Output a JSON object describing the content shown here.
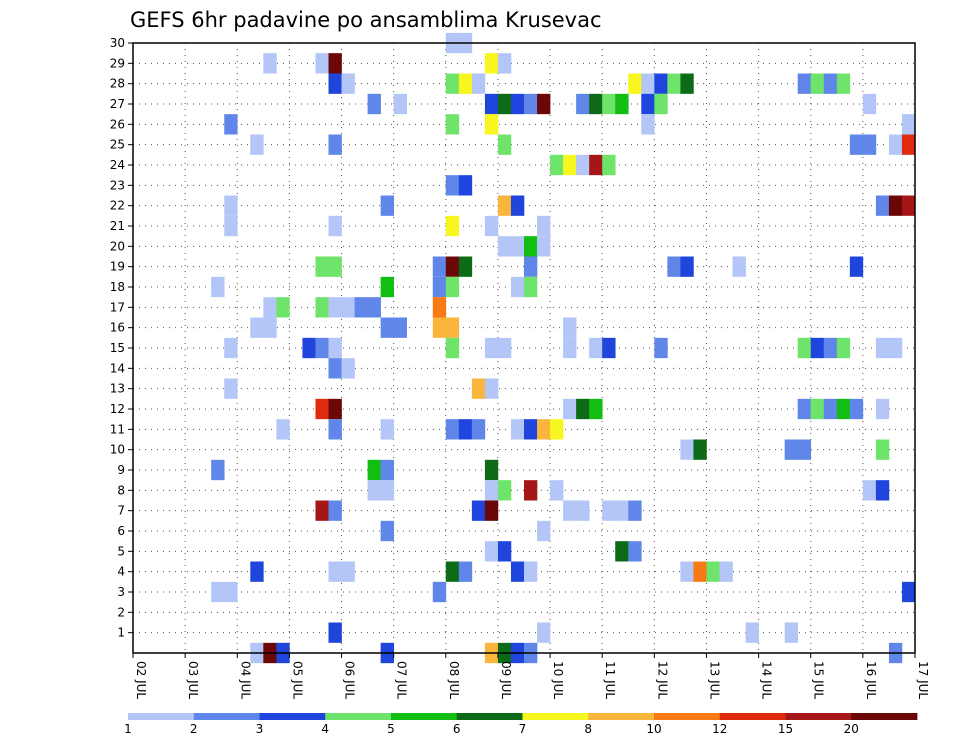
{
  "chart_data": {
    "type": "heatmap",
    "title": "GEFS 6hr padavine po ansamblima Krusevac",
    "y_ticks": [
      "1",
      "2",
      "3",
      "4",
      "5",
      "6",
      "7",
      "8",
      "9",
      "10",
      "11",
      "12",
      "13",
      "14",
      "15",
      "16",
      "17",
      "18",
      "19",
      "20",
      "21",
      "22",
      "23",
      "24",
      "25",
      "26",
      "27",
      "28",
      "29",
      "30"
    ],
    "x_ticks": [
      "02 JUL",
      "03 JUL",
      "04 JUL",
      "05 JUL",
      "06 JUL",
      "07 JUL",
      "08 JUL",
      "09 JUL",
      "10 JUL",
      "11 JUL",
      "12 JUL",
      "13 JUL",
      "14 JUL",
      "15 JUL",
      "16 JUL",
      "17 JUL"
    ],
    "x_range_days": [
      0,
      15
    ],
    "y_range": [
      0,
      30
    ],
    "time_step_hours": 6,
    "grid": "dotted",
    "colorbar": {
      "position": "bottom",
      "labels": [
        "1",
        "2",
        "3",
        "4",
        "5",
        "6",
        "7",
        "8",
        "10",
        "12",
        "15",
        "20"
      ],
      "colors": [
        "#b3c6f7",
        "#5f86e8",
        "#1f45dc",
        "#6fe46a",
        "#12be12",
        "#0d6b18",
        "#f7f71f",
        "#fab63c",
        "#f77a14",
        "#e02a0e",
        "#a51717",
        "#6b0707"
      ]
    },
    "cells": [
      [
        6.0,
        30,
        0
      ],
      [
        6.25,
        30,
        0
      ],
      [
        2.5,
        29,
        0
      ],
      [
        3.5,
        29,
        0
      ],
      [
        3.75,
        29,
        11
      ],
      [
        6.75,
        29,
        6
      ],
      [
        7.0,
        29,
        0
      ],
      [
        3.75,
        28,
        2
      ],
      [
        4.0,
        28,
        0
      ],
      [
        6.0,
        28,
        3
      ],
      [
        6.25,
        28,
        6
      ],
      [
        6.5,
        28,
        0
      ],
      [
        9.5,
        28,
        6
      ],
      [
        9.75,
        28,
        0
      ],
      [
        10.0,
        28,
        2
      ],
      [
        10.25,
        28,
        3
      ],
      [
        10.5,
        28,
        5
      ],
      [
        12.75,
        28,
        1
      ],
      [
        13.0,
        28,
        3
      ],
      [
        13.25,
        28,
        1
      ],
      [
        13.5,
        28,
        3
      ],
      [
        4.5,
        27,
        1
      ],
      [
        5.0,
        27,
        0
      ],
      [
        6.75,
        27,
        2
      ],
      [
        7.0,
        27,
        5
      ],
      [
        7.25,
        27,
        2
      ],
      [
        7.5,
        27,
        1
      ],
      [
        7.75,
        27,
        11
      ],
      [
        8.5,
        27,
        1
      ],
      [
        8.75,
        27,
        5
      ],
      [
        9.0,
        27,
        3
      ],
      [
        9.25,
        27,
        4
      ],
      [
        9.75,
        27,
        2
      ],
      [
        10.0,
        27,
        3
      ],
      [
        14.0,
        27,
        0
      ],
      [
        1.75,
        26,
        1
      ],
      [
        6.0,
        26,
        3
      ],
      [
        6.75,
        26,
        6
      ],
      [
        9.75,
        26,
        0
      ],
      [
        14.75,
        26,
        0
      ],
      [
        2.25,
        25,
        0
      ],
      [
        3.75,
        25,
        1
      ],
      [
        7.0,
        25,
        3
      ],
      [
        13.75,
        25,
        1
      ],
      [
        14.0,
        25,
        1
      ],
      [
        14.5,
        25,
        0
      ],
      [
        14.75,
        25,
        9
      ],
      [
        6.0,
        23,
        1
      ],
      [
        6.25,
        23,
        2
      ],
      [
        8.0,
        24,
        3
      ],
      [
        8.25,
        24,
        6
      ],
      [
        8.5,
        24,
        0
      ],
      [
        8.75,
        24,
        10
      ],
      [
        9.0,
        24,
        3
      ],
      [
        1.75,
        22,
        0
      ],
      [
        4.75,
        22,
        1
      ],
      [
        7.0,
        22,
        7
      ],
      [
        7.25,
        22,
        2
      ],
      [
        14.25,
        22,
        1
      ],
      [
        14.5,
        22,
        11
      ],
      [
        14.75,
        22,
        10
      ],
      [
        1.75,
        21,
        0
      ],
      [
        3.75,
        21,
        0
      ],
      [
        6.0,
        21,
        6
      ],
      [
        6.75,
        21,
        0
      ],
      [
        7.75,
        21,
        0
      ],
      [
        7.0,
        20,
        0
      ],
      [
        7.25,
        20,
        0
      ],
      [
        7.5,
        20,
        4
      ],
      [
        7.75,
        20,
        0
      ],
      [
        3.5,
        19,
        3
      ],
      [
        3.75,
        19,
        3
      ],
      [
        5.75,
        19,
        1
      ],
      [
        6.0,
        19,
        11
      ],
      [
        6.25,
        19,
        5
      ],
      [
        7.5,
        19,
        1
      ],
      [
        10.25,
        19,
        1
      ],
      [
        10.5,
        19,
        2
      ],
      [
        11.5,
        19,
        0
      ],
      [
        13.75,
        19,
        2
      ],
      [
        1.5,
        18,
        0
      ],
      [
        4.75,
        18,
        4
      ],
      [
        5.75,
        18,
        1
      ],
      [
        6.0,
        18,
        3
      ],
      [
        7.25,
        18,
        0
      ],
      [
        7.5,
        18,
        3
      ],
      [
        2.5,
        17,
        0
      ],
      [
        2.75,
        17,
        3
      ],
      [
        3.5,
        17,
        3
      ],
      [
        3.75,
        17,
        0
      ],
      [
        4.0,
        17,
        0
      ],
      [
        4.25,
        17,
        1
      ],
      [
        4.5,
        17,
        1
      ],
      [
        5.75,
        17,
        8
      ],
      [
        2.25,
        16,
        0
      ],
      [
        2.5,
        16,
        0
      ],
      [
        4.75,
        16,
        1
      ],
      [
        5.0,
        16,
        1
      ],
      [
        5.75,
        16,
        7
      ],
      [
        6.0,
        16,
        7
      ],
      [
        8.25,
        16,
        0
      ],
      [
        1.75,
        15,
        0
      ],
      [
        3.25,
        15,
        2
      ],
      [
        3.5,
        15,
        1
      ],
      [
        3.75,
        15,
        0
      ],
      [
        6.0,
        15,
        3
      ],
      [
        6.75,
        15,
        0
      ],
      [
        7.0,
        15,
        0
      ],
      [
        8.25,
        15,
        0
      ],
      [
        8.75,
        15,
        0
      ],
      [
        9.0,
        15,
        2
      ],
      [
        10.0,
        15,
        1
      ],
      [
        12.75,
        15,
        3
      ],
      [
        13.0,
        15,
        2
      ],
      [
        13.25,
        15,
        1
      ],
      [
        13.5,
        15,
        3
      ],
      [
        14.25,
        15,
        0
      ],
      [
        14.5,
        15,
        0
      ],
      [
        3.75,
        14,
        1
      ],
      [
        4.0,
        14,
        0
      ],
      [
        1.75,
        13,
        0
      ],
      [
        6.5,
        13,
        7
      ],
      [
        6.75,
        13,
        0
      ],
      [
        3.5,
        12,
        9
      ],
      [
        3.75,
        12,
        11
      ],
      [
        8.25,
        12,
        0
      ],
      [
        8.5,
        12,
        5
      ],
      [
        8.75,
        12,
        4
      ],
      [
        12.75,
        12,
        1
      ],
      [
        13.0,
        12,
        3
      ],
      [
        13.25,
        12,
        1
      ],
      [
        13.5,
        12,
        4
      ],
      [
        13.75,
        12,
        1
      ],
      [
        14.25,
        12,
        0
      ],
      [
        2.75,
        11,
        0
      ],
      [
        3.75,
        11,
        1
      ],
      [
        4.75,
        11,
        0
      ],
      [
        6.0,
        11,
        1
      ],
      [
        6.25,
        11,
        2
      ],
      [
        6.5,
        11,
        1
      ],
      [
        7.25,
        11,
        0
      ],
      [
        7.5,
        11,
        2
      ],
      [
        7.75,
        11,
        7
      ],
      [
        8.0,
        11,
        6
      ],
      [
        10.5,
        10,
        0
      ],
      [
        10.75,
        10,
        5
      ],
      [
        12.5,
        10,
        1
      ],
      [
        12.75,
        10,
        1
      ],
      [
        14.25,
        10,
        3
      ],
      [
        1.5,
        9,
        1
      ],
      [
        4.5,
        9,
        4
      ],
      [
        4.75,
        9,
        1
      ],
      [
        6.75,
        9,
        5
      ],
      [
        4.5,
        8,
        0
      ],
      [
        4.75,
        8,
        0
      ],
      [
        6.75,
        8,
        0
      ],
      [
        7.0,
        8,
        3
      ],
      [
        7.5,
        8,
        10
      ],
      [
        8.0,
        8,
        0
      ],
      [
        14.0,
        8,
        0
      ],
      [
        14.25,
        8,
        2
      ],
      [
        3.5,
        7,
        10
      ],
      [
        3.75,
        7,
        1
      ],
      [
        6.5,
        7,
        2
      ],
      [
        6.75,
        7,
        11
      ],
      [
        8.25,
        7,
        0
      ],
      [
        8.5,
        7,
        0
      ],
      [
        9.0,
        7,
        0
      ],
      [
        9.25,
        7,
        0
      ],
      [
        9.5,
        7,
        1
      ],
      [
        4.75,
        6,
        1
      ],
      [
        7.75,
        6,
        0
      ],
      [
        6.75,
        5,
        0
      ],
      [
        7.0,
        5,
        2
      ],
      [
        9.25,
        5,
        5
      ],
      [
        9.5,
        5,
        1
      ],
      [
        2.25,
        4,
        2
      ],
      [
        3.75,
        4,
        0
      ],
      [
        4.0,
        4,
        0
      ],
      [
        6.0,
        4,
        5
      ],
      [
        6.25,
        4,
        1
      ],
      [
        7.25,
        4,
        2
      ],
      [
        7.5,
        4,
        0
      ],
      [
        10.5,
        4,
        0
      ],
      [
        10.75,
        4,
        8
      ],
      [
        11.0,
        4,
        3
      ],
      [
        11.25,
        4,
        0
      ],
      [
        1.5,
        3,
        0
      ],
      [
        1.75,
        3,
        0
      ],
      [
        5.75,
        3,
        1
      ],
      [
        14.75,
        3,
        2
      ],
      [
        3.75,
        1,
        2
      ],
      [
        7.75,
        1,
        0
      ],
      [
        11.75,
        1,
        0
      ],
      [
        12.5,
        1,
        0
      ],
      [
        2.25,
        0,
        0
      ],
      [
        2.5,
        0,
        11
      ],
      [
        2.75,
        0,
        2
      ],
      [
        4.75,
        0,
        2
      ],
      [
        6.75,
        0,
        7
      ],
      [
        7.0,
        0,
        5
      ],
      [
        7.25,
        0,
        2
      ],
      [
        7.5,
        0,
        1
      ],
      [
        14.5,
        0,
        1
      ]
    ]
  }
}
